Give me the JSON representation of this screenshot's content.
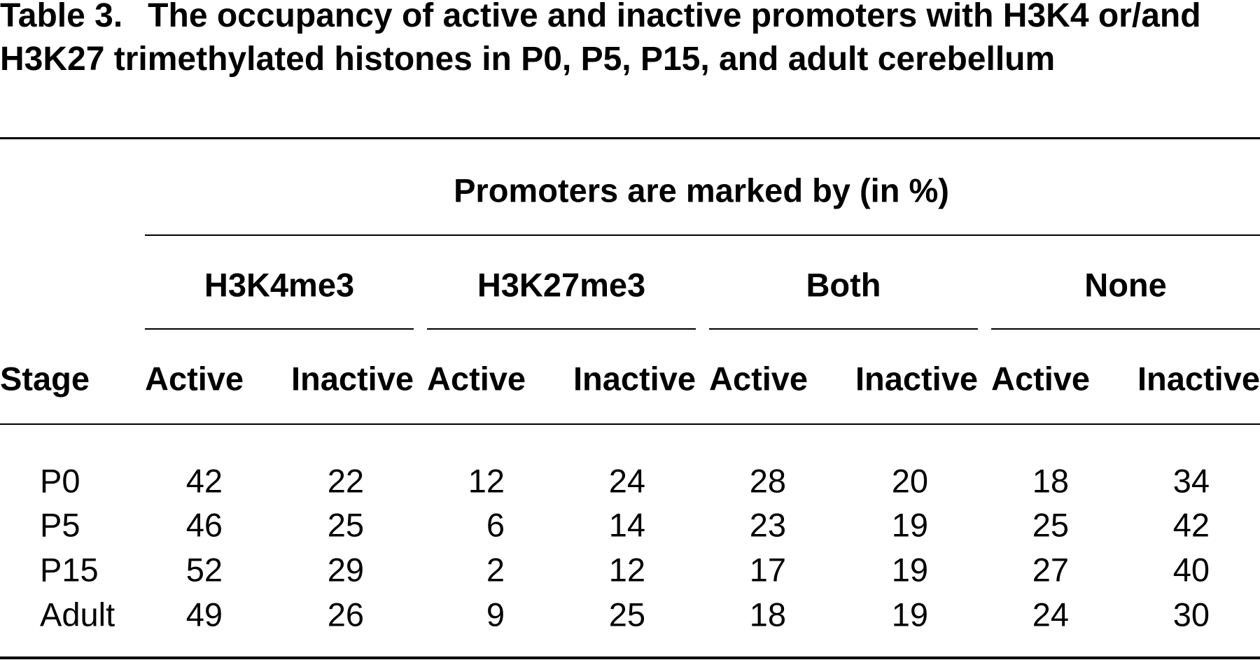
{
  "table": {
    "label": "Table 3.",
    "title": "The occupancy of active and inactive promoters with H3K4 or/and H3K27 trimethylated histones in P0, P5, P15, and adult cerebellum",
    "group_header": "Promoters are marked by (in %)",
    "stage_header": "Stage",
    "marks": [
      "H3K4me3",
      "H3K27me3",
      "Both",
      "None"
    ],
    "columns": [
      "Active",
      "Inactive",
      "Active",
      "Inactive",
      "Active",
      "Inactive",
      "Active",
      "Inactive"
    ],
    "rows": [
      [
        "P0",
        42,
        22,
        12,
        24,
        28,
        20,
        18,
        34
      ],
      [
        "P5",
        46,
        25,
        6,
        14,
        23,
        19,
        25,
        42
      ],
      [
        "P15",
        52,
        29,
        2,
        12,
        17,
        19,
        27,
        40
      ],
      [
        "Adult",
        49,
        26,
        9,
        25,
        18,
        19,
        24,
        30
      ]
    ]
  }
}
